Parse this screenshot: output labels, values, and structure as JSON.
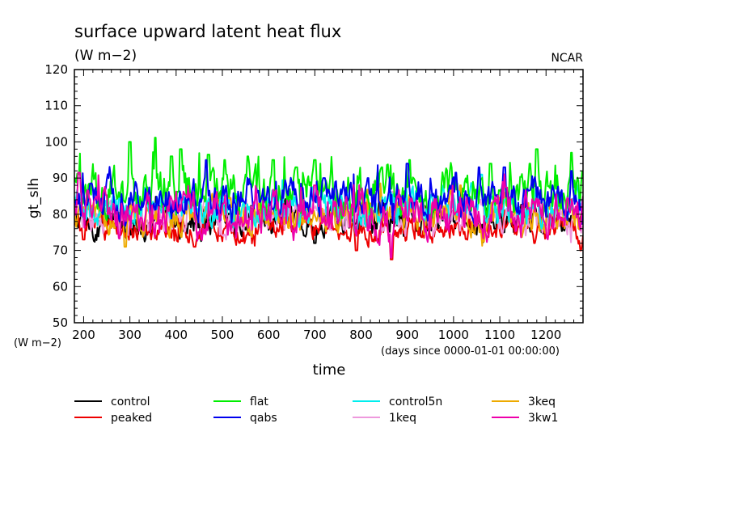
{
  "header": {
    "title": "surface upward latent heat flux",
    "units": "(W m−2)",
    "credit": "NCAR"
  },
  "chart_data": {
    "type": "line",
    "title": "surface upward latent heat flux",
    "subtitle": "(W m−2)",
    "xlabel": "time",
    "x_unit_note": "(days since 0000-01-01 00:00:00)",
    "ylabel": "gt_slh",
    "y_unit_note": "(W m−2)",
    "xlim": [
      180,
      1280
    ],
    "ylim": [
      50,
      120
    ],
    "x_ticks": [
      200,
      300,
      400,
      500,
      600,
      700,
      800,
      900,
      1000,
      1100,
      1200
    ],
    "y_ticks": [
      50,
      60,
      70,
      80,
      90,
      100,
      110,
      120
    ],
    "grid": false,
    "legend_position": "bottom",
    "series": [
      {
        "name": "control",
        "color": "#000000",
        "mean": 78,
        "amp": 4.5,
        "peaks": [
          [
            700,
            72
          ],
          [
            1090,
            76
          ],
          [
            1108,
            75
          ]
        ]
      },
      {
        "name": "flat",
        "color": "#00ee00",
        "mean": 86,
        "amp": 6.5,
        "peaks": [
          [
            300,
            100
          ],
          [
            355,
            101.2
          ],
          [
            390,
            96
          ],
          [
            410,
            98
          ],
          [
            470,
            96.5
          ],
          [
            505,
            95
          ],
          [
            555,
            96
          ],
          [
            610,
            95
          ],
          [
            660,
            93
          ],
          [
            700,
            95
          ],
          [
            845,
            93
          ],
          [
            905,
            95
          ],
          [
            1080,
            94
          ],
          [
            1165,
            94
          ],
          [
            1180,
            98
          ],
          [
            1255,
            97
          ]
        ]
      },
      {
        "name": "control5n",
        "color": "#00eeee",
        "mean": 82,
        "amp": 5.0,
        "peaks": [
          [
            1060,
            91
          ],
          [
            1180,
            87
          ]
        ]
      },
      {
        "name": "3keq",
        "color": "#eeaa00",
        "mean": 80,
        "amp": 5.0,
        "peaks": [
          [
            290,
            71
          ],
          [
            1015,
            88
          ]
        ]
      },
      {
        "name": "peaked",
        "color": "#ee0000",
        "mean": 76,
        "amp": 3.5,
        "peaks": [
          [
            200,
            73
          ],
          [
            440,
            71
          ],
          [
            790,
            70
          ],
          [
            866,
            67.5
          ],
          [
            1175,
            72
          ],
          [
            1275,
            70
          ]
        ]
      },
      {
        "name": "qabs",
        "color": "#0000ee",
        "mean": 84,
        "amp": 5.0,
        "peaks": [
          [
            465,
            95
          ],
          [
            720,
            90
          ],
          [
            815,
            90
          ],
          [
            900,
            94
          ],
          [
            1005,
            91.5
          ],
          [
            1055,
            93
          ],
          [
            1110,
            93
          ],
          [
            1255,
            92
          ]
        ]
      },
      {
        "name": "1keq",
        "color": "#ee99dd",
        "mean": 79,
        "amp": 4.5,
        "peaks": []
      },
      {
        "name": "3kw1",
        "color": "#ee00aa",
        "mean": 80,
        "amp": 6.0,
        "peaks": [
          [
            190,
            91.5
          ],
          [
            700,
            88
          ],
          [
            865,
            68
          ]
        ]
      }
    ]
  }
}
